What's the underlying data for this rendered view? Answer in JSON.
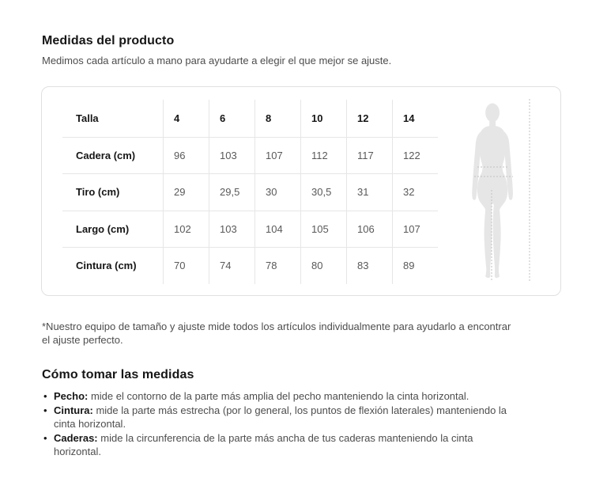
{
  "page": {
    "title": "Medidas del producto",
    "subtitle": "Medimos cada artículo a mano para ayudarte a elegir el que mejor se ajuste.",
    "footnote": "*Nuestro equipo de tamaño y ajuste mide todos los artículos individualmente para ayudarlo a encontrar el ajuste perfecto."
  },
  "size_table": {
    "header_label": "Talla",
    "sizes": [
      "4",
      "6",
      "8",
      "10",
      "12",
      "14"
    ],
    "rows": [
      {
        "label": "Cadera (cm)",
        "values": [
          "96",
          "103",
          "107",
          "112",
          "117",
          "122"
        ]
      },
      {
        "label": "Tiro (cm)",
        "values": [
          "29",
          "29,5",
          "30",
          "30,5",
          "31",
          "32"
        ]
      },
      {
        "label": "Largo (cm)",
        "values": [
          "102",
          "103",
          "104",
          "105",
          "106",
          "107"
        ]
      },
      {
        "label": "Cintura (cm)",
        "values": [
          "70",
          "74",
          "78",
          "80",
          "83",
          "89"
        ]
      }
    ]
  },
  "figure": {
    "icon": "female-silhouette-icon",
    "description": "female body silhouette with dashed measurement guides"
  },
  "how_to": {
    "title": "Cómo tomar las medidas",
    "items": [
      {
        "term": "Pecho:",
        "description": "mide el contorno de la parte más amplia del pecho manteniendo la cinta horizontal."
      },
      {
        "term": "Cintura:",
        "description": "mide la parte más estrecha (por lo general, los puntos de flexión laterales) manteniendo la cinta horizontal."
      },
      {
        "term": "Caderas:",
        "description": "mide la circunferencia de la parte más ancha de tus caderas manteniendo la cinta horizontal."
      }
    ]
  },
  "colors": {
    "card_border": "#e0e0e0",
    "grid_line": "#e6e6e6",
    "text_primary": "#161616",
    "text_secondary": "#4d4d4d",
    "value_text": "#595959",
    "silhouette_fill": "#e6e6e6",
    "dashed_guide": "#c2c2c2"
  }
}
